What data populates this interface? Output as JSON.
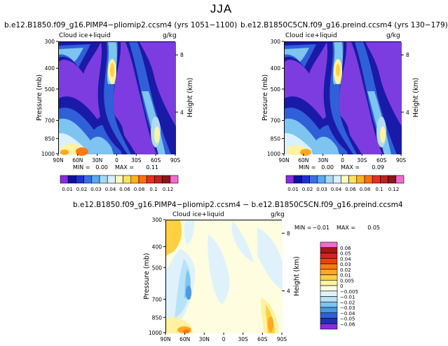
{
  "page_title": "JJA",
  "chart_data": [
    {
      "type": "heatmap",
      "title": "b.e12.B1850.f09_g16.PIMP4−pliomip2.ccsm4 (yrs 1051−1100)",
      "field_label": "Cloud ice+liquid",
      "units": "g/kg",
      "ylabel": "Pressure (mb)",
      "ylabel_right": "Height (km)",
      "x_ticks": [
        "90N",
        "60N",
        "30N",
        "0",
        "30S",
        "60S",
        "90S"
      ],
      "y_ticks": [
        "300",
        "400",
        "500",
        "700",
        "850",
        "1000"
      ],
      "y_ticks_right": [
        "8",
        "4"
      ],
      "min_label": "MIN =",
      "min_value": "0.00",
      "max_label": "MAX =",
      "max_value": "0.11"
    },
    {
      "type": "heatmap",
      "title": "b.e12.B1850C5CN.f09_g16.preind.ccsm4 (yrs 130−179)",
      "field_label": "Cloud ice+liquid",
      "units": "g/kg",
      "ylabel": "Pressure (mb)",
      "ylabel_right": "Height (km)",
      "x_ticks": [
        "90N",
        "60N",
        "30N",
        "0",
        "30S",
        "60S",
        "90S"
      ],
      "y_ticks": [
        "300",
        "400",
        "500",
        "700",
        "850",
        "1000"
      ],
      "y_ticks_right": [
        "8",
        "4"
      ],
      "min_label": "MIN =",
      "min_value": "0.00",
      "max_label": "MAX =",
      "max_value": "0.09"
    },
    {
      "type": "heatmap",
      "title": "b.e12.B1850.f09_g16.PIMP4−pliomip2.ccsm4 − b.e12.B1850C5CN.f09_g16.preind.ccsm4",
      "field_label": "Cloud ice+liquid",
      "units": "g/kg",
      "ylabel": "Pressure (mb)",
      "ylabel_right": "Height (km)",
      "x_ticks": [
        "90N",
        "60N",
        "30N",
        "0",
        "30S",
        "60S",
        "90S"
      ],
      "y_ticks": [
        "300",
        "400",
        "500",
        "700",
        "850",
        "1000"
      ],
      "y_ticks_right": [
        "8",
        "4"
      ],
      "min_label": "MIN =",
      "min_value": "−0.01",
      "max_label": "MAX =",
      "max_value": "0.05"
    }
  ],
  "colorbar_top": {
    "labels": [
      "0.01",
      "0.02",
      "0.03",
      "0.04",
      "0.06",
      "0.08",
      "0.1",
      "0.12"
    ],
    "colors": [
      "#8a2be2",
      "#1010a0",
      "#2030d0",
      "#3a6fe0",
      "#5aa8ee",
      "#a8d8f8",
      "#d8f0ff",
      "#fff8c0",
      "#ffe060",
      "#ffb020",
      "#ff7010",
      "#e83020",
      "#c02020",
      "#8a1818",
      "#f06ad0"
    ]
  },
  "colorbar_diff": {
    "labels": [
      "0.06",
      "0.05",
      "0.04",
      "0.03",
      "0.02",
      "0.01",
      "0.005",
      "0",
      "−0.005",
      "−0.01",
      "−0.02",
      "−0.03",
      "−0.04",
      "−0.05",
      "−0.06"
    ],
    "colors": [
      "#f06ad0",
      "#a01818",
      "#d82020",
      "#f04010",
      "#ff7a10",
      "#ffa820",
      "#ffd040",
      "#fff2a0",
      "#fffde0",
      "#dff2fc",
      "#b8e2f8",
      "#7ec4f0",
      "#4a98e6",
      "#2f60d8",
      "#2030b0",
      "#8a2be2"
    ]
  }
}
